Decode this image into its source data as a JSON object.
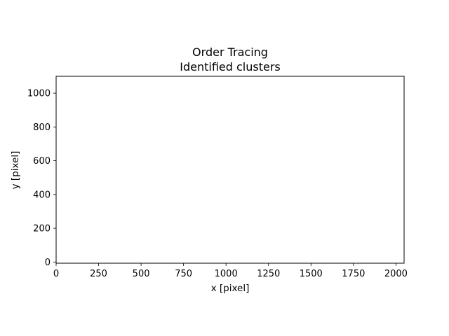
{
  "chart_data": {
    "type": "scatter",
    "title": "Order Tracing",
    "subtitle": "Identified clusters",
    "xlabel": "x [pixel]",
    "ylabel": "y [pixel]",
    "xlim": [
      0,
      2048
    ],
    "ylim": [
      -7,
      1100
    ],
    "x_ticks": [
      0,
      250,
      500,
      750,
      1000,
      1250,
      1500,
      1750,
      2000
    ],
    "y_ticks": [
      0,
      200,
      400,
      600,
      800,
      1000
    ],
    "grid": false,
    "series": [],
    "colors": {
      "axes": "#000000",
      "background": "#ffffff"
    }
  }
}
